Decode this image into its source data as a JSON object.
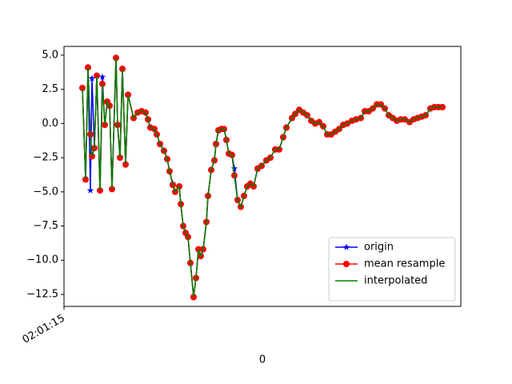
{
  "chart_data": {
    "type": "line",
    "xlabel": "0",
    "x": [
      23,
      27,
      30,
      33,
      35,
      38,
      41,
      45,
      48,
      51,
      54,
      57,
      60,
      65,
      67,
      70,
      73,
      77,
      80,
      87,
      92,
      97,
      102,
      105,
      108,
      113,
      116,
      120,
      125,
      129,
      132,
      136,
      139,
      144,
      146,
      149,
      152,
      155,
      158,
      162,
      165,
      168,
      171,
      174,
      178,
      180,
      184,
      188,
      190,
      193,
      197,
      200,
      203,
      206,
      210,
      213,
      217,
      221,
      225,
      229,
      233,
      237,
      242,
      247,
      253,
      258,
      264,
      269,
      274,
      278,
      285,
      289,
      294,
      299,
      304,
      309,
      314,
      319,
      324,
      329,
      334,
      339,
      344,
      349,
      354,
      360,
      365,
      371,
      376,
      381,
      386,
      391,
      396,
      401,
      406,
      411,
      416,
      421,
      426,
      432,
      437,
      442,
      447,
      452,
      458,
      463,
      468,
      473
    ],
    "series": [
      {
        "name": "origin",
        "color": "#0000ff",
        "marker": "star",
        "values": [
          2.6,
          -4.1,
          4.1,
          -4.9,
          3.3,
          -1.8,
          3.5,
          -4.9,
          3.4,
          -0.1,
          1.6,
          1.3,
          -4.8,
          4.8,
          -0.1,
          -2.5,
          4.0,
          -3.0,
          2.1,
          0.4,
          0.8,
          0.9,
          0.8,
          0.3,
          -0.3,
          -0.4,
          -0.8,
          -1.5,
          -2.0,
          -2.6,
          -3.5,
          -4.4,
          -5.0,
          -4.6,
          -5.9,
          -7.5,
          -8.0,
          -8.3,
          -10.2,
          -12.7,
          -11.3,
          -9.2,
          -9.7,
          -9.2,
          -7.2,
          -5.3,
          -3.4,
          -2.7,
          -1.5,
          -0.5,
          -0.4,
          -0.4,
          -1.2,
          -2.2,
          -2.3,
          -3.3,
          -5.6,
          -6.1,
          -5.3,
          -4.6,
          -4.4,
          -4.6,
          -3.3,
          -3.1,
          -2.7,
          -2.5,
          -1.9,
          -1.9,
          -1.0,
          -0.3,
          0.4,
          0.7,
          1.0,
          0.8,
          0.6,
          0.2,
          0.0,
          0.1,
          -0.2,
          -0.8,
          -0.8,
          -0.6,
          -0.4,
          -0.1,
          0.0,
          0.2,
          0.3,
          0.4,
          0.9,
          0.9,
          1.1,
          1.4,
          1.4,
          1.1,
          0.6,
          0.4,
          0.2,
          0.3,
          0.3,
          0.1,
          0.3,
          0.4,
          0.5,
          0.6,
          1.1,
          1.2,
          1.2,
          1.2
        ]
      },
      {
        "name": "mean resample",
        "color": "#ff0000",
        "marker": "circle",
        "values": [
          2.6,
          -4.1,
          4.1,
          -0.8,
          -2.4,
          -1.8,
          3.5,
          -4.9,
          2.9,
          -0.1,
          1.6,
          1.3,
          -4.8,
          4.8,
          -0.1,
          -2.5,
          4.0,
          -3.0,
          2.1,
          0.4,
          0.8,
          0.9,
          0.8,
          0.3,
          -0.3,
          -0.4,
          -0.8,
          -1.5,
          -2.0,
          -2.6,
          -3.5,
          -4.5,
          -5.0,
          -4.6,
          -5.9,
          -7.5,
          -8.0,
          -8.3,
          -10.2,
          -12.7,
          -11.3,
          -9.2,
          -9.7,
          -9.2,
          -7.2,
          -5.3,
          -3.4,
          -2.7,
          -1.5,
          -0.5,
          -0.4,
          -0.4,
          -1.2,
          -2.2,
          -2.3,
          -3.8,
          -5.6,
          -6.1,
          -5.3,
          -4.6,
          -4.4,
          -4.6,
          -3.3,
          -3.1,
          -2.7,
          -2.5,
          -1.9,
          -1.9,
          -1.0,
          -0.3,
          0.4,
          0.7,
          1.0,
          0.8,
          0.6,
          0.2,
          0.0,
          0.1,
          -0.2,
          -0.8,
          -0.8,
          -0.6,
          -0.4,
          -0.1,
          0.0,
          0.2,
          0.3,
          0.4,
          0.9,
          0.9,
          1.1,
          1.4,
          1.4,
          1.1,
          0.6,
          0.4,
          0.2,
          0.3,
          0.3,
          0.1,
          0.3,
          0.4,
          0.5,
          0.6,
          1.1,
          1.2,
          1.2,
          1.2
        ]
      },
      {
        "name": "interpolated",
        "color": "#008000",
        "marker": "none",
        "values": [
          2.6,
          -4.1,
          4.1,
          -0.8,
          -2.4,
          -1.8,
          3.5,
          -4.9,
          2.9,
          -0.1,
          1.6,
          1.3,
          -4.8,
          4.8,
          -0.1,
          -2.5,
          4.0,
          -3.0,
          2.1,
          0.4,
          0.8,
          0.9,
          0.8,
          0.3,
          -0.3,
          -0.4,
          -0.8,
          -1.5,
          -2.0,
          -2.6,
          -3.5,
          -4.5,
          -5.0,
          -4.6,
          -5.9,
          -7.5,
          -8.0,
          -8.3,
          -10.2,
          -12.7,
          -11.3,
          -9.2,
          -9.7,
          -9.2,
          -7.2,
          -5.3,
          -3.4,
          -2.7,
          -1.5,
          -0.5,
          -0.4,
          -0.4,
          -1.2,
          -2.2,
          -2.3,
          -3.8,
          -5.6,
          -6.1,
          -5.3,
          -4.6,
          -4.4,
          -4.6,
          -3.3,
          -3.1,
          -2.7,
          -2.5,
          -1.9,
          -1.9,
          -1.0,
          -0.3,
          0.4,
          0.7,
          1.0,
          0.8,
          0.6,
          0.2,
          0.0,
          0.1,
          -0.2,
          -0.8,
          -0.8,
          -0.6,
          -0.4,
          -0.1,
          0.0,
          0.2,
          0.3,
          0.4,
          0.9,
          0.9,
          1.1,
          1.4,
          1.4,
          1.1,
          0.6,
          0.4,
          0.2,
          0.3,
          0.3,
          0.1,
          0.3,
          0.4,
          0.5,
          0.6,
          1.1,
          1.2,
          1.2,
          1.2
        ]
      }
    ],
    "xlim": [
      0,
      496
    ],
    "xticks": [
      {
        "value": 0,
        "label": "02:01:15"
      }
    ],
    "ylim": [
      -13.38,
      5.64
    ],
    "yticks": [
      {
        "value": -12.5,
        "label": "−12.5"
      },
      {
        "value": -10,
        "label": "−10.0"
      },
      {
        "value": -7.5,
        "label": "−7.5"
      },
      {
        "value": -5,
        "label": "−5.0"
      },
      {
        "value": -2.5,
        "label": "−2.5"
      },
      {
        "value": 0,
        "label": "0.0"
      },
      {
        "value": 2.5,
        "label": "2.5"
      },
      {
        "value": 5,
        "label": "5.0"
      }
    ],
    "legend": "lower right"
  }
}
